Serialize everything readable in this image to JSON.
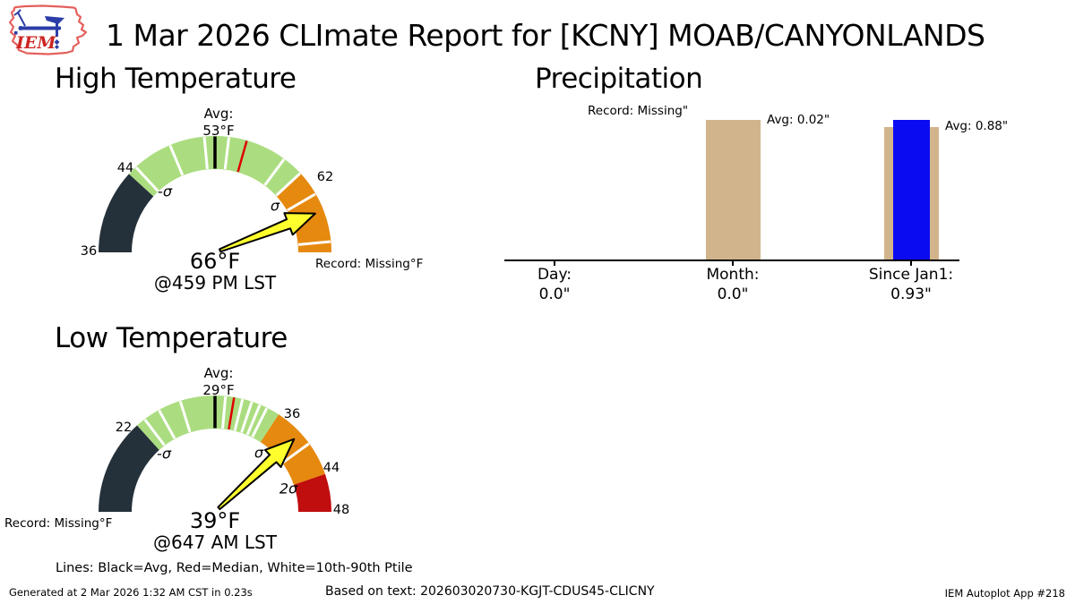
{
  "header": {
    "logo_text": "IEM",
    "title": "1 Mar 2026 CLImate Report for [KCNY] MOAB/CANYONLANDS"
  },
  "sections": {
    "high_heading": "High Temperature",
    "low_heading": "Low Temperature",
    "precip_heading": "Precipitation"
  },
  "gauges": {
    "high": {
      "avg_line1": "Avg:",
      "avg_line2": "53°F",
      "min_label": "36",
      "sigma_minus_label": "44",
      "sigma_minus_symbol": "-σ",
      "sigma_plus_label": "62",
      "sigma_plus_symbol": "σ",
      "observed": "66°F",
      "observed_time": "@459 PM LST",
      "record": "Record: Missing°F"
    },
    "low": {
      "avg_line1": "Avg:",
      "avg_line2": "29°F",
      "sigma_minus_label": "22",
      "sigma_minus_symbol": "-σ",
      "sigma_plus_label": "36",
      "sigma_plus_symbol": "σ",
      "two_sigma_label": "44",
      "two_sigma_symbol": "2σ",
      "max_label": "48",
      "observed": "39°F",
      "observed_time": "@647 AM LST",
      "record": "Record: Missing°F"
    }
  },
  "precip": {
    "record_note": "Record: Missing\"",
    "month_avg_note": "Avg: 0.02\"",
    "jan1_avg_note": "Avg: 0.88\"",
    "categories": [
      {
        "label": "Day:",
        "value": "0.0\""
      },
      {
        "label": "Month:",
        "value": "0.0\""
      },
      {
        "label": "Since Jan1:",
        "value": "0.93\""
      }
    ]
  },
  "legend": "Lines: Black=Avg, Red=Median, White=10th-90th Ptile",
  "footer": {
    "generated": "Generated at 2 Mar 2026 1:32 AM CST in 0.23s",
    "based_on": "Based on text: 202603020730-KGJT-CDUS45-CLICNY",
    "app": "IEM Autoplot App #218"
  },
  "colors": {
    "slate": "#25313a",
    "green": "#abdd80",
    "orange": "#e6890f",
    "red": "#c00d0e",
    "tan": "#d2b48c",
    "blue": "#0b0bf2",
    "needle_fill": "#ffff2e",
    "tick_white": "#ffffff",
    "tick_black": "#000000",
    "tick_red": "#dd0000",
    "logo_outline": "#e4605c",
    "logo_text": "#cb2522",
    "logo_blue": "#2c3da8"
  },
  "chart_data": [
    {
      "type": "gauge",
      "id": "high",
      "title": "High Temperature",
      "units": "°F",
      "axis_min": 36,
      "axis_max": 70,
      "avg": 53,
      "median": 56,
      "sigma_minus": 44,
      "sigma_plus": 62,
      "observed": 66,
      "observed_time": "459 PM LST",
      "record": "Missing",
      "segments": [
        {
          "from": 36,
          "to": 44,
          "color": "slate"
        },
        {
          "from": 44,
          "to": 62,
          "color": "green"
        },
        {
          "from": 62,
          "to": 70,
          "color": "orange"
        }
      ],
      "white_ticks": [
        44.9,
        48.7,
        52.0,
        54.3,
        59.9,
        61.9,
        64.3,
        69.0
      ]
    },
    {
      "type": "gauge",
      "id": "low",
      "title": "Low Temperature",
      "units": "°F",
      "axis_min": 14,
      "axis_max": 48,
      "avg": 29,
      "median": 31,
      "sigma_minus": 22,
      "sigma_plus": 36,
      "two_sigma": 44,
      "observed": 39,
      "observed_time": "647 AM LST",
      "record": "Missing",
      "segments": [
        {
          "from": 14,
          "to": 22,
          "color": "slate"
        },
        {
          "from": 22,
          "to": 36,
          "color": "green"
        },
        {
          "from": 36,
          "to": 44,
          "color": "orange"
        },
        {
          "from": 44,
          "to": 48,
          "color": "red"
        }
      ],
      "white_ticks": [
        22.8,
        24.2,
        26.1,
        30.1,
        31.9,
        32.9,
        33.8,
        34.6,
        40.4
      ]
    },
    {
      "type": "bar",
      "id": "precip",
      "title": "Precipitation",
      "units": "inch",
      "categories": [
        "Day:",
        "Month:",
        "Since Jan1:"
      ],
      "series": [
        {
          "name": "Average",
          "color": "tan",
          "values": [
            null,
            0.02,
            0.88
          ]
        },
        {
          "name": "Actual",
          "color": "blue",
          "values": [
            0.0,
            0.0,
            0.93
          ]
        }
      ],
      "record": "Missing",
      "legend_position": "none",
      "grid": false
    }
  ]
}
